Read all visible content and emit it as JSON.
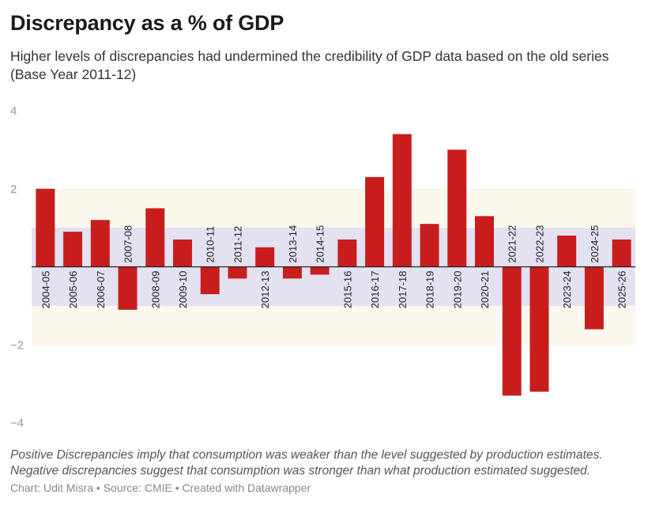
{
  "header": {
    "title": "Discrepancy as a % of GDP",
    "subtitle": "Higher levels of discrepancies had undermined the credibility of GDP data based on the old series (Base Year 2011-12)"
  },
  "notes": {
    "line1": "Positive Discrepancies imply that consumption was weaker than the level suggested by production estimates.",
    "line2": "Negative discrepancies suggest that consumption was stronger than what production estimated suggested."
  },
  "footer": {
    "credit": "Chart: Udit Misra • Source: CMIE • Created with Datawrapper"
  },
  "colors": {
    "bar": "#c71e1d",
    "band_outer": "#fdf8ee",
    "band_inner": "#e4e1f0",
    "axis": "#222222",
    "tick_label": "#9a9a9a",
    "category_label": "#222222"
  },
  "chart_data": {
    "type": "bar",
    "title": "Discrepancy as a % of GDP",
    "subtitle": "Higher levels of discrepancies had undermined the credibility of GDP data based on the old series (Base Year 2011-12)",
    "categories": [
      "2004-05",
      "2005-06",
      "2006-07",
      "2007-08",
      "2008-09",
      "2009-10",
      "2010-11",
      "2011-12",
      "2012-13",
      "2013-14",
      "2014-15",
      "2015-16",
      "2016-17",
      "2017-18",
      "2018-19",
      "2019-20",
      "2020-21",
      "2021-22",
      "2022-23",
      "2023-24",
      "2024-25",
      "2025-26"
    ],
    "values": [
      2.0,
      0.9,
      1.2,
      -1.1,
      1.5,
      0.7,
      -0.7,
      -0.3,
      0.5,
      -0.3,
      -0.2,
      0.7,
      2.3,
      3.4,
      1.1,
      3.0,
      1.3,
      -3.3,
      -3.2,
      0.8,
      -1.6,
      0.7
    ],
    "ylim": [
      -4,
      4
    ],
    "yticks": [
      4,
      2,
      -2,
      -4
    ],
    "ytick_labels": [
      "4",
      "2",
      "−2",
      "−4"
    ],
    "xlabel": "",
    "ylabel": "",
    "grid": false,
    "shaded_ranges": [
      {
        "from": -2,
        "to": 2,
        "name": "outer-band"
      },
      {
        "from": -1,
        "to": 1,
        "name": "inner-band"
      }
    ]
  }
}
